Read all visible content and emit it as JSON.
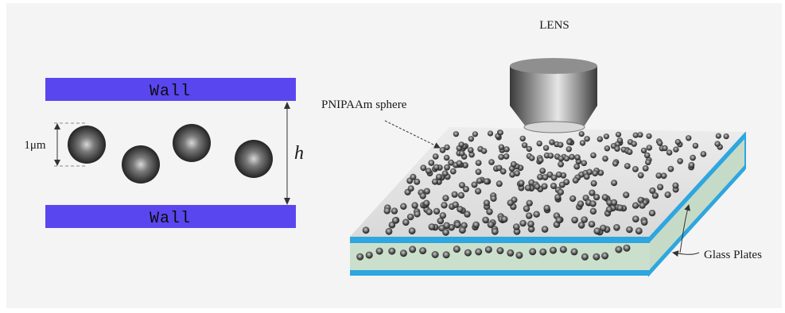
{
  "left_panel": {
    "top_wall_label": "Wall",
    "bottom_wall_label": "Wall",
    "diameter_label": "1μm",
    "gap_label": "h"
  },
  "right_panel": {
    "lens_label": "LENS",
    "sphere_label": "PNIPAAm sphere",
    "plates_label": "Glass Plates"
  },
  "colors": {
    "wall": "#5a46ee",
    "plate_edge": "#2ea6df",
    "cell_side": "#cbe0cc",
    "sphere": "#2a2a2a"
  }
}
